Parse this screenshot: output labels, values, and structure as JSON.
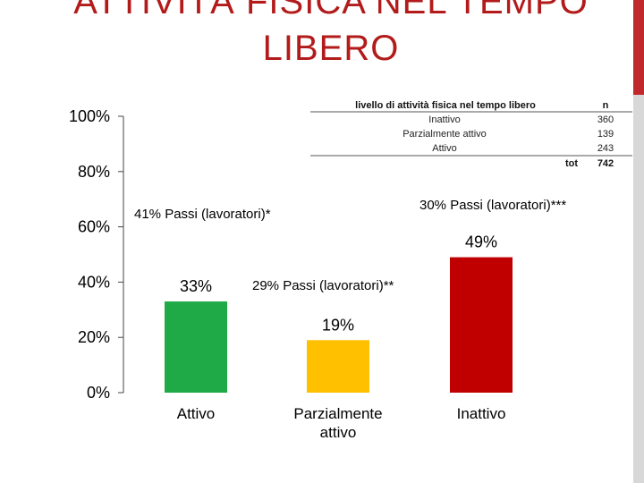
{
  "title": {
    "line1": "ATTIVITÀ FISICA NEL TEMPO",
    "line2": "LIBERO"
  },
  "accent_color": "#c0282c",
  "chart_data": {
    "type": "bar",
    "categories": [
      "Attivo",
      "Parzialmente attivo",
      "Inattivo"
    ],
    "values": [
      33,
      19,
      49
    ],
    "data_labels": [
      "33%",
      "19%",
      "49%"
    ],
    "colors": [
      "#1faa47",
      "#ffc000",
      "#c00000"
    ],
    "ylim": [
      0,
      100
    ],
    "yticks": [
      0,
      20,
      40,
      60,
      80,
      100
    ],
    "ytick_labels": [
      "0%",
      "20%",
      "40%",
      "60%",
      "80%",
      "100%"
    ],
    "xlabel": "",
    "ylabel": "",
    "grid": false,
    "legend": "none",
    "annotations": [
      "41% Passi (lavoratori)*",
      "29% Passi  (lavoratori)**",
      "30% Passi (lavoratori)***"
    ]
  },
  "table": {
    "header": [
      "livello di attività fisica nel tempo libero",
      "n"
    ],
    "rows": [
      [
        "Inattivo",
        "360"
      ],
      [
        "Parzialmente attivo",
        "139"
      ],
      [
        "Attivo",
        "243"
      ]
    ],
    "total": [
      "tot",
      "742"
    ]
  }
}
